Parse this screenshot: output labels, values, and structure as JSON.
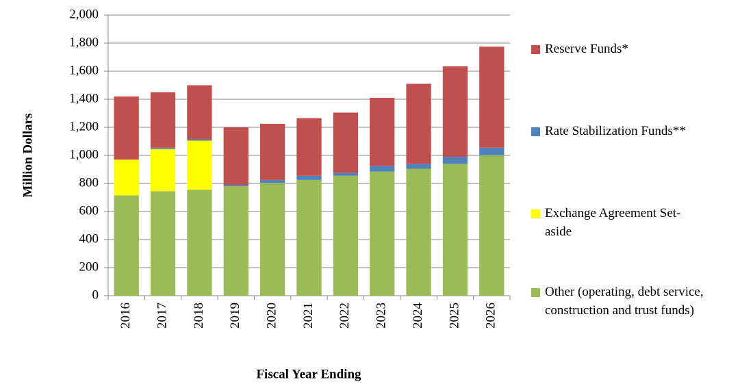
{
  "chart_data": {
    "type": "stacked_bar",
    "y_label": "Million Dollars",
    "x_label": "Fiscal Year Ending",
    "categories": [
      "2016",
      "2017",
      "2018",
      "2019",
      "2020",
      "2021",
      "2022",
      "2023",
      "2024",
      "2025",
      "2026"
    ],
    "series": [
      {
        "name": "Other (operating, debt service, construction and trust funds)",
        "color": "#9bbb59",
        "values": [
          715,
          745,
          755,
          780,
          805,
          825,
          855,
          885,
          905,
          940,
          1000
        ]
      },
      {
        "name": "Exchange Agreement Set-aside",
        "color": "#ffff00",
        "values": [
          255,
          300,
          350,
          0,
          0,
          0,
          0,
          0,
          0,
          0,
          0
        ]
      },
      {
        "name": "Rate Stabilization Funds**",
        "color": "#4f81bd",
        "values": [
          0,
          10,
          10,
          10,
          20,
          30,
          20,
          40,
          35,
          50,
          55
        ]
      },
      {
        "name": "Reserve Funds*",
        "color": "#c0504d",
        "values": [
          450,
          395,
          385,
          410,
          400,
          410,
          430,
          485,
          570,
          645,
          720
        ]
      }
    ],
    "ylim": [
      0,
      2000
    ],
    "yticks": [
      0,
      200,
      400,
      600,
      800,
      {
        "value": 1000,
        "label": "1,000"
      },
      {
        "value": 1200,
        "label": "1,200"
      },
      {
        "value": 1400,
        "label": "1,400"
      },
      {
        "value": 1600,
        "label": "1,600"
      },
      {
        "value": 1800,
        "label": "1,800"
      },
      {
        "value": 2000,
        "label": "2,000"
      }
    ],
    "grid": true
  }
}
